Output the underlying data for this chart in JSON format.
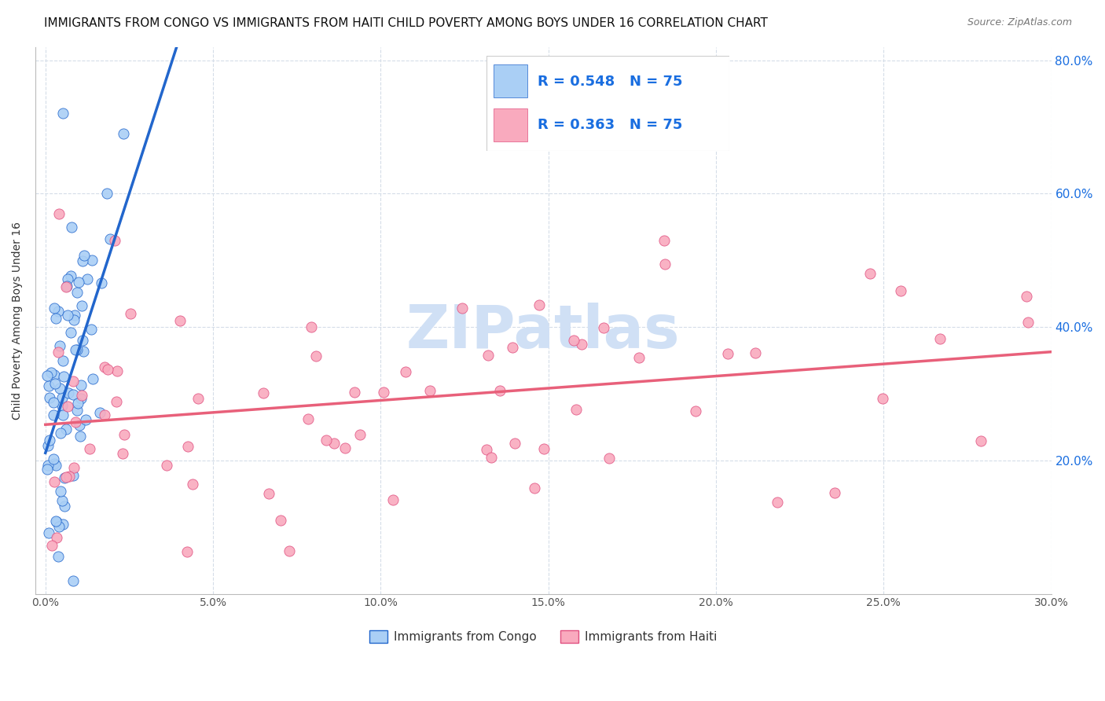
{
  "title": "IMMIGRANTS FROM CONGO VS IMMIGRANTS FROM HAITI CHILD POVERTY AMONG BOYS UNDER 16 CORRELATION CHART",
  "source": "Source: ZipAtlas.com",
  "ylabel": "Child Poverty Among Boys Under 16",
  "xlim": [
    0.0,
    30.0
  ],
  "ylim": [
    0.0,
    82.0
  ],
  "yticks": [
    20.0,
    40.0,
    60.0,
    80.0
  ],
  "xticks": [
    0.0,
    5.0,
    10.0,
    15.0,
    20.0,
    25.0,
    30.0
  ],
  "r_congo": "0.548",
  "n_congo": "75",
  "r_haiti": "0.363",
  "n_haiti": "75",
  "congo_face_color": "#aacff5",
  "congo_edge_color": "#2266cc",
  "haiti_face_color": "#f9aabe",
  "haiti_edge_color": "#e05080",
  "congo_line_color": "#2266cc",
  "haiti_line_color": "#e8607a",
  "watermark": "ZIPatlas",
  "watermark_color": "#d0e0f5",
  "grid_color": "#d5dde8",
  "background_color": "#ffffff",
  "title_fontsize": 11,
  "axis_label_fontsize": 10,
  "legend_fontsize": 13,
  "tick_fontsize": 10,
  "right_tick_color": "#1a6ee0",
  "legend_label_1": "Immigrants from Congo",
  "legend_label_2": "Immigrants from Haiti"
}
